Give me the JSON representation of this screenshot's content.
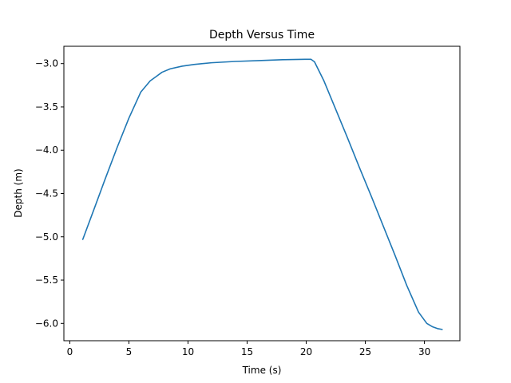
{
  "chart_data": {
    "type": "line",
    "title": "Depth Versus Time",
    "xlabel": "Time (s)",
    "ylabel": "Depth (m)",
    "xlim": [
      -0.5,
      33
    ],
    "ylim": [
      -6.2,
      -2.8
    ],
    "xticks": [
      0,
      5,
      10,
      15,
      20,
      25,
      30
    ],
    "xtick_labels": [
      "0",
      "5",
      "10",
      "15",
      "20",
      "25",
      "30"
    ],
    "yticks": [
      -3.0,
      -3.5,
      -4.0,
      -4.5,
      -5.0,
      -5.5,
      -6.0
    ],
    "ytick_labels": [
      "−3.0",
      "−3.5",
      "−4.0",
      "−4.5",
      "−5.0",
      "−5.5",
      "−6.0"
    ],
    "grid": false,
    "line_color": "#1f77b4",
    "series": [
      {
        "x": [
          1.1,
          2.0,
          3.0,
          4.0,
          5.0,
          6.0,
          6.8,
          7.3,
          7.8,
          8.5,
          9.5,
          10.5,
          12.0,
          14.0,
          16.0,
          18.0,
          20.0,
          20.4,
          20.7,
          21.5,
          22.5,
          23.5,
          24.5,
          25.5,
          26.5,
          27.5,
          28.5,
          29.5,
          30.2,
          30.7,
          31.1,
          31.5
        ],
        "y": [
          -5.03,
          -4.7,
          -4.33,
          -3.97,
          -3.63,
          -3.33,
          -3.2,
          -3.15,
          -3.1,
          -3.06,
          -3.03,
          -3.01,
          -2.99,
          -2.975,
          -2.965,
          -2.955,
          -2.95,
          -2.95,
          -2.98,
          -3.2,
          -3.53,
          -3.86,
          -4.2,
          -4.53,
          -4.87,
          -5.21,
          -5.56,
          -5.87,
          -6.0,
          -6.04,
          -6.06,
          -6.07
        ]
      }
    ]
  }
}
